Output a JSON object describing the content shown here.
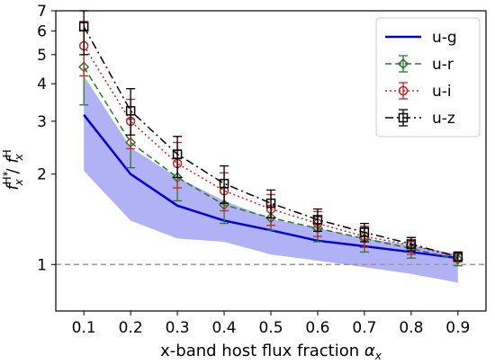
{
  "chart_data": {
    "type": "line",
    "xlabel": "x-band host flux fraction",
    "xlabel_symbol": "α",
    "xlabel_subscript": "x",
    "ylabel_left": "f",
    "ylabel_sub_left": "x",
    "ylabel_sup_left": "H*",
    "ylabel_sep": " / ",
    "ylabel_right": "f",
    "ylabel_sub_right": "x",
    "ylabel_sup_right": "H",
    "yscale": "log",
    "xlim": [
      0.04,
      0.96
    ],
    "ylim": [
      0.7,
      7
    ],
    "x_ticks": [
      "0.1",
      "0.2",
      "0.3",
      "0.4",
      "0.5",
      "0.6",
      "0.7",
      "0.8",
      "0.9"
    ],
    "y_ticks": [
      {
        "value": 1,
        "label": "1"
      },
      {
        "value": 2,
        "label": "2"
      },
      {
        "value": 3,
        "label": "3"
      },
      {
        "value": 4,
        "label": "4"
      },
      {
        "value": 5,
        "label": "5"
      },
      {
        "value": 6,
        "label": "6"
      },
      {
        "value": 7,
        "label": "7"
      }
    ],
    "reference_line": {
      "y": 1,
      "color": "#999999",
      "style": "dashed"
    },
    "legend_position": "top-right",
    "x": [
      0.1,
      0.2,
      0.3,
      0.4,
      0.5,
      0.6,
      0.7,
      0.8,
      0.9
    ],
    "series": [
      {
        "name": "u-g",
        "color": "#0000dd",
        "style": "solid",
        "marker": "none",
        "values": [
          3.15,
          2.0,
          1.57,
          1.4,
          1.3,
          1.2,
          1.15,
          1.1,
          1.05
        ],
        "band_lower": [
          2.05,
          1.4,
          1.22,
          1.19,
          1.08,
          1.03,
          0.98,
          0.93,
          0.87
        ],
        "band_upper": [
          4.25,
          2.45,
          1.95,
          1.63,
          1.42,
          1.32,
          1.22,
          1.16,
          1.08
        ],
        "band_color": "#a8a8f5"
      },
      {
        "name": "u-r",
        "color": "#2a7a2a",
        "style": "dashed",
        "marker": "diamond",
        "values": [
          4.55,
          2.55,
          1.95,
          1.58,
          1.43,
          1.32,
          1.22,
          1.13,
          1.04
        ],
        "err_lower": [
          3.4,
          2.1,
          1.63,
          1.37,
          1.3,
          1.19,
          1.1,
          1.05,
          0.99
        ],
        "err_upper": [
          6.0,
          3.05,
          2.25,
          1.8,
          1.57,
          1.44,
          1.33,
          1.2,
          1.08
        ]
      },
      {
        "name": "u-i",
        "color": "#cc2222",
        "style": "dotted",
        "marker": "circle",
        "values": [
          5.35,
          3.0,
          2.17,
          1.76,
          1.53,
          1.37,
          1.24,
          1.16,
          1.06
        ],
        "err_lower": [
          4.25,
          2.43,
          1.8,
          1.51,
          1.35,
          1.24,
          1.14,
          1.08,
          1.02
        ],
        "err_upper": [
          6.45,
          3.55,
          2.55,
          2.02,
          1.71,
          1.5,
          1.34,
          1.23,
          1.1
        ]
      },
      {
        "name": "u-z",
        "color": "#000000",
        "style": "dashdot",
        "marker": "square",
        "values": [
          6.2,
          3.25,
          2.33,
          1.86,
          1.6,
          1.41,
          1.28,
          1.17,
          1.06
        ],
        "err_lower": [
          5.0,
          2.7,
          1.95,
          1.6,
          1.43,
          1.29,
          1.19,
          1.11,
          1.03
        ],
        "err_upper": [
          7.0,
          3.85,
          2.67,
          2.13,
          1.77,
          1.53,
          1.37,
          1.23,
          1.1
        ]
      }
    ]
  }
}
